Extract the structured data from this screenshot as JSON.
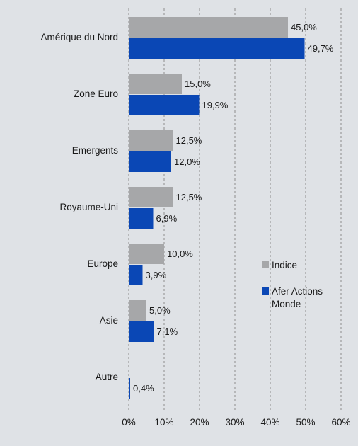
{
  "chart_data": {
    "type": "bar",
    "orientation": "horizontal",
    "categories": [
      "Amérique du Nord",
      "Zone Euro",
      "Emergents",
      "Royaume-Uni",
      "Europe",
      "Asie",
      "Autre"
    ],
    "series": [
      {
        "name": "Indice",
        "color": "#a6a7a9",
        "values": [
          45.0,
          15.0,
          12.5,
          12.5,
          10.0,
          5.0,
          null
        ],
        "labels": [
          "45,0%",
          "15,0%",
          "12,5%",
          "12,5%",
          "10,0%",
          "5,0%",
          ""
        ]
      },
      {
        "name": "Afer Actions Monde",
        "color": "#0a47b5",
        "values": [
          49.7,
          19.9,
          12.0,
          6.9,
          3.9,
          7.1,
          0.4
        ],
        "labels": [
          "49,7%",
          "19,9%",
          "12,0%",
          "6,9%",
          "3,9%",
          "7,1%",
          "0,4%"
        ]
      }
    ],
    "xlim": [
      0,
      60
    ],
    "x_ticks": [
      "0%",
      "10%",
      "20%",
      "30%",
      "40%",
      "50%",
      "60%"
    ],
    "grid": "vertical-dashed",
    "legend_position": "right-inside",
    "background": "#dfe2e6"
  }
}
